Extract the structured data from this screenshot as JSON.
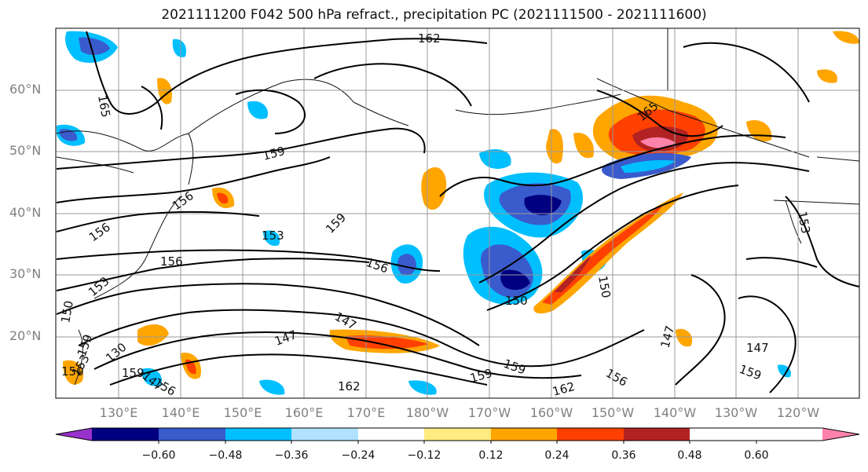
{
  "title": "2021111200 F042 500 hPa refract., precipitation PC (2021111500 - 2021111600)",
  "lat_labels": [
    "60°N",
    "50°N",
    "40°N",
    "30°N",
    "20°N"
  ],
  "lon_labels": [
    "130°E",
    "140°E",
    "150°E",
    "160°E",
    "170°E",
    "180°W",
    "170°W",
    "160°W",
    "150°W",
    "140°W",
    "130°W",
    "120°W"
  ],
  "colorbar": {
    "colors": [
      "#9932cc",
      "#000080",
      "#3a5bcc",
      "#00bfff",
      "#b0e2ff",
      "#ffffff",
      "#ffeb80",
      "#ffa500",
      "#ff4000",
      "#b22222",
      "#ff82ab"
    ],
    "tick_labels": [
      "−0.60",
      "−0.48",
      "−0.36",
      "−0.24",
      "−0.12",
      "0.12",
      "0.24",
      "0.36",
      "0.48",
      "0.60"
    ]
  },
  "contour_labels": [
    "162",
    "165",
    "165",
    "159",
    "156",
    "156",
    "156",
    "153",
    "153",
    "159",
    "156",
    "150",
    "150",
    "153",
    "150",
    "147",
    "147",
    "147",
    "147",
    "159",
    "162",
    "159",
    "162",
    "156",
    "150",
    "130",
    "159",
    "147",
    "159",
    "153",
    "159",
    "156"
  ]
}
